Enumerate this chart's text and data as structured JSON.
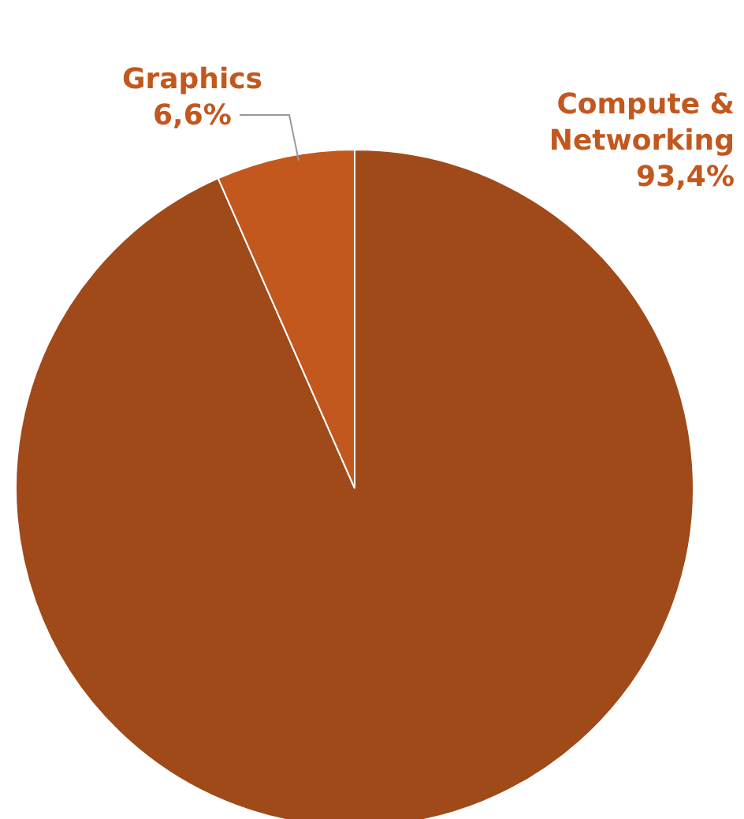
{
  "chart_data": {
    "type": "pie",
    "categories": [
      "Compute & Networking",
      "Graphics"
    ],
    "values": [
      93.4,
      6.6
    ],
    "colors": [
      "#a04a1a",
      "#c2581e"
    ],
    "value_labels": [
      "93,4%",
      "6,6%"
    ]
  }
}
